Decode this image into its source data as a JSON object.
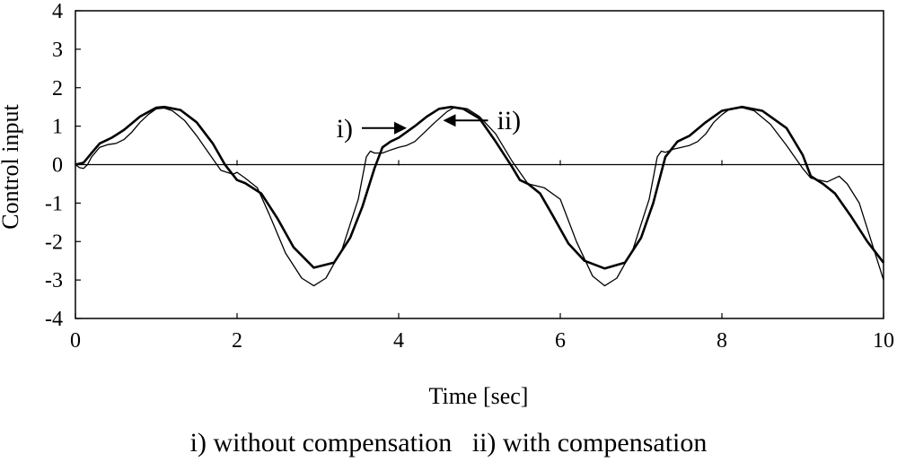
{
  "chart_data": {
    "type": "line",
    "xlabel": "Time [sec]",
    "ylabel": "Control input",
    "xlim": [
      0,
      10
    ],
    "ylim": [
      -4,
      4
    ],
    "x_ticks": [
      "0",
      "2",
      "4",
      "6",
      "8",
      "10"
    ],
    "y_ticks": [
      "4",
      "3",
      "2",
      "1",
      "0",
      "-1",
      "-2",
      "-3",
      "-4"
    ],
    "grid": false,
    "zero_line": true,
    "annotations": [
      {
        "label": "i)",
        "arrow": "right",
        "points_to": [
          4.1,
          0.95
        ]
      },
      {
        "label": "ii)",
        "arrow": "left",
        "points_to": [
          4.55,
          1.15
        ]
      }
    ],
    "series": [
      {
        "id": "i",
        "x": [
          0,
          0.05,
          0.1,
          0.15,
          0.2,
          0.3,
          0.4,
          0.5,
          0.6,
          0.7,
          0.8,
          0.9,
          1.0,
          1.1,
          1.2,
          1.35,
          1.5,
          1.65,
          1.8,
          1.95,
          2.0,
          2.1,
          2.25,
          2.4,
          2.6,
          2.8,
          2.95,
          3.1,
          3.3,
          3.5,
          3.6,
          3.65,
          3.7,
          3.8,
          3.9,
          4.0,
          4.1,
          4.2,
          4.3,
          4.45,
          4.6,
          4.7,
          4.85,
          5.0,
          5.2,
          5.4,
          5.6,
          5.8,
          6.0,
          6.2,
          6.4,
          6.55,
          6.7,
          6.9,
          7.1,
          7.2,
          7.25,
          7.3,
          7.4,
          7.5,
          7.6,
          7.7,
          7.8,
          7.9,
          8.0,
          8.1,
          8.25,
          8.4,
          8.6,
          8.8,
          9.0,
          9.1,
          9.3,
          9.45,
          9.55,
          9.7,
          9.85,
          10.0
        ],
        "y": [
          0.0,
          -0.08,
          -0.1,
          0.0,
          0.2,
          0.45,
          0.52,
          0.55,
          0.65,
          0.85,
          1.1,
          1.3,
          1.45,
          1.47,
          1.4,
          1.15,
          0.75,
          0.3,
          -0.15,
          -0.25,
          -0.2,
          -0.35,
          -0.6,
          -1.3,
          -2.3,
          -2.95,
          -3.15,
          -2.95,
          -2.2,
          -0.9,
          0.2,
          0.35,
          0.3,
          0.3,
          0.38,
          0.45,
          0.5,
          0.6,
          0.8,
          1.1,
          1.38,
          1.5,
          1.45,
          1.25,
          0.8,
          0.1,
          -0.5,
          -0.6,
          -0.9,
          -2.0,
          -2.9,
          -3.15,
          -2.95,
          -2.2,
          -0.9,
          0.2,
          0.35,
          0.32,
          0.4,
          0.45,
          0.5,
          0.6,
          0.8,
          1.1,
          1.3,
          1.45,
          1.48,
          1.4,
          1.05,
          0.5,
          -0.1,
          -0.35,
          -0.45,
          -0.3,
          -0.5,
          -1.0,
          -2.0,
          -3.0
        ]
      },
      {
        "id": "ii",
        "x": [
          0,
          0.1,
          0.2,
          0.3,
          0.45,
          0.6,
          0.8,
          1.0,
          1.1,
          1.3,
          1.5,
          1.7,
          1.85,
          2.0,
          2.1,
          2.3,
          2.5,
          2.7,
          2.95,
          3.2,
          3.4,
          3.55,
          3.7,
          3.8,
          3.9,
          4.0,
          4.1,
          4.2,
          4.35,
          4.5,
          4.65,
          4.8,
          5.0,
          5.2,
          5.4,
          5.5,
          5.6,
          5.75,
          5.9,
          6.1,
          6.3,
          6.55,
          6.8,
          7.0,
          7.15,
          7.3,
          7.45,
          7.6,
          7.8,
          8.0,
          8.25,
          8.5,
          8.8,
          9.0,
          9.1,
          9.25,
          9.4,
          9.6,
          9.8,
          10.0
        ],
        "y": [
          0.0,
          0.05,
          0.3,
          0.55,
          0.7,
          0.9,
          1.25,
          1.48,
          1.5,
          1.42,
          1.1,
          0.55,
          0.0,
          -0.4,
          -0.48,
          -0.75,
          -1.4,
          -2.15,
          -2.68,
          -2.55,
          -1.9,
          -1.1,
          -0.1,
          0.45,
          0.6,
          0.7,
          0.85,
          1.0,
          1.25,
          1.45,
          1.5,
          1.45,
          1.2,
          0.6,
          -0.05,
          -0.4,
          -0.5,
          -0.75,
          -1.3,
          -2.05,
          -2.5,
          -2.7,
          -2.55,
          -1.9,
          -1.0,
          0.2,
          0.6,
          0.75,
          1.1,
          1.4,
          1.5,
          1.4,
          0.95,
          0.25,
          -0.3,
          -0.5,
          -0.75,
          -1.35,
          -2.0,
          -2.55
        ]
      }
    ]
  },
  "caption": "i) without compensation   ii) with compensation"
}
